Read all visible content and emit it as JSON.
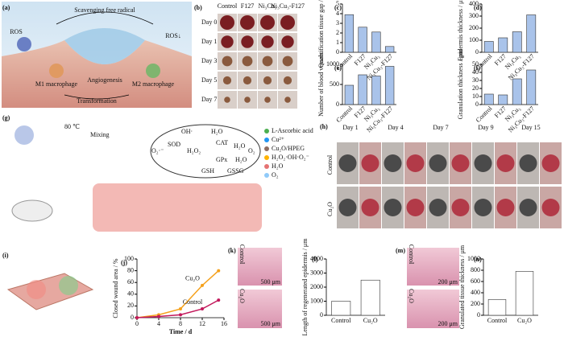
{
  "figures": {
    "a": {
      "label": "(a)",
      "texts": [
        "Scavenging free radical",
        "ROS",
        "ROS↓",
        "M1 macrophage",
        "Angiogenesis",
        "M2 macrophage",
        "Transformation"
      ]
    },
    "b": {
      "label": "(b)",
      "columns": [
        "Control",
        "F127",
        "Ni₃Cu₃",
        "Ni₃Cu₃-F127"
      ],
      "rows": [
        "Day 0",
        "Day 1",
        "Day 3",
        "Day 5",
        "Day 7"
      ]
    },
    "g": {
      "label": "(g)",
      "texts": [
        "80 ℃",
        "Mixing",
        "OH·",
        "H₂O",
        "O₂·⁻",
        "SOD",
        "H₂O₂",
        "CAT",
        "H₂O",
        "O₂",
        "GPx",
        "H₂O",
        "GSH",
        "GSSG"
      ],
      "legend": [
        "L-Ascorbic acid",
        "Cu²⁺",
        "Cu₂O/HPEG",
        "H₂O₂·OH·O₂⁻",
        "H₂O",
        "O₂"
      ]
    },
    "h": {
      "label": "(h)",
      "columns": [
        "Day 1",
        "Day 4",
        "Day 7",
        "Day 9",
        "Day 15"
      ],
      "rows": [
        "Control",
        "Cu₂O"
      ]
    },
    "i": {
      "label": "(i)"
    },
    "k": {
      "label": "(k)",
      "rows": [
        "Control",
        "Cu₂O"
      ],
      "scale": "500 μm"
    },
    "m": {
      "label": "(m)",
      "rows": [
        "Control",
        "Cu₂O"
      ],
      "scale": "200 μm"
    }
  },
  "chart_data": [
    {
      "type": "bar",
      "label": "(c)",
      "y_label": "Quantification tissue gap / mm",
      "categories": [
        "Control",
        "F127",
        "Ni₃Cu₃",
        "Ni₃Cu₃-F127"
      ],
      "values": [
        3.9,
        2.6,
        2.1,
        0.6
      ],
      "color": "#a9c3ea",
      "ylim": [
        0,
        5
      ],
      "yticks": [
        0,
        1,
        2,
        3,
        4,
        5
      ]
    },
    {
      "type": "bar",
      "label": "(d)",
      "y_label": "Epidermis thickness / μm",
      "categories": [
        "Control",
        "F127",
        "Ni₃Cu₃",
        "Ni₃Cu₃-F127"
      ],
      "values": [
        90,
        120,
        170,
        310
      ],
      "color": "#a9c3ea",
      "ylim": [
        0,
        400
      ],
      "yticks": [
        0,
        100,
        200,
        300,
        400
      ]
    },
    {
      "type": "bar",
      "label": "(e)",
      "y_label": "Number of blood vessels",
      "categories": [
        "Control",
        "F127",
        "Ni₃Cu₃",
        "Ni₃Cu₃-F127"
      ],
      "values": [
        480,
        740,
        710,
        950
      ],
      "color": "#a9c3ea",
      "ylim": [
        0,
        1000
      ],
      "yticks": [
        0,
        500,
        1000
      ]
    },
    {
      "type": "bar",
      "label": "(f)",
      "y_label": "Granulation thickness / μm",
      "categories": [
        "Control",
        "F127",
        "Ni₃Cu₃",
        "Ni₃Cu₃-F127"
      ],
      "values": [
        13,
        12,
        32,
        43
      ],
      "color": "#a9c3ea",
      "ylim": [
        0,
        50
      ],
      "yticks": [
        0,
        10,
        20,
        30,
        40,
        50
      ]
    },
    {
      "type": "line",
      "label": "(j)",
      "x_label": "Time / d",
      "y_label": "Closed wound area / %",
      "x": [
        0,
        4,
        8,
        12,
        15
      ],
      "xlim": [
        0,
        16
      ],
      "xticks": [
        0,
        4,
        8,
        12,
        16
      ],
      "ylim": [
        0,
        100
      ],
      "yticks": [
        0,
        20,
        40,
        60,
        80,
        100
      ],
      "series": [
        {
          "name": "Cu₂O",
          "color": "#f5a11c",
          "values": [
            0,
            5,
            15,
            55,
            80
          ]
        },
        {
          "name": "Control",
          "color": "#c2185b",
          "values": [
            0,
            2,
            5,
            15,
            30
          ]
        }
      ]
    },
    {
      "type": "bar",
      "label": "(l)",
      "y_label": "Length of regenerated epidermis / μm",
      "categories": [
        "Control",
        "Cu₂O"
      ],
      "values": [
        1000,
        2500
      ],
      "color": "#ffffff",
      "ylim": [
        0,
        4000
      ],
      "yticks": [
        0,
        1000,
        2000,
        3000,
        4000
      ]
    },
    {
      "type": "bar",
      "label": "(n)",
      "y_label": "Granulated tissue thickness / μm",
      "categories": [
        "Control",
        "Cu₂O"
      ],
      "values": [
        280,
        780
      ],
      "color": "#ffffff",
      "ylim": [
        0,
        1000
      ],
      "yticks": [
        0,
        200,
        400,
        600,
        800,
        1000
      ]
    }
  ]
}
